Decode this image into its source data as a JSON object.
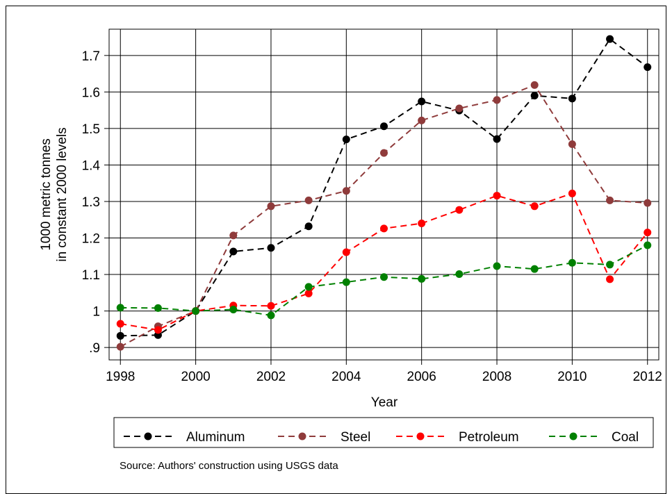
{
  "chart_data": {
    "type": "line",
    "x_label": "Year",
    "y_label": [
      "1000 metric tonnes",
      "in constant 2000 levels"
    ],
    "note": "Source: Authors' construction using USGS data",
    "x": [
      1998,
      1999,
      2000,
      2001,
      2002,
      2003,
      2004,
      2005,
      2006,
      2007,
      2008,
      2009,
      2010,
      2011,
      2012
    ],
    "xlim": [
      1997.7,
      2012.3
    ],
    "xticks": [
      1998,
      2000,
      2002,
      2004,
      2006,
      2008,
      2010,
      2012
    ],
    "ylim": [
      0.866,
      1.772
    ],
    "yticks": [
      {
        "value": 0.9,
        "label": ".9"
      },
      1,
      1.1,
      1.2,
      1.3,
      1.4,
      1.5,
      1.6,
      1.7
    ],
    "grid": true,
    "legend": "bottom",
    "series": [
      {
        "name": "Aluminum",
        "color": "#000000",
        "values": [
          0.932,
          0.934,
          1.0,
          1.163,
          1.173,
          1.232,
          1.47,
          1.506,
          1.574,
          1.549,
          1.471,
          1.59,
          1.582,
          1.745,
          1.668
        ]
      },
      {
        "name": "Steel",
        "color": "#8f3b3b",
        "values": [
          0.902,
          0.958,
          1.0,
          1.207,
          1.287,
          1.303,
          1.329,
          1.433,
          1.522,
          1.555,
          1.578,
          1.619,
          1.457,
          1.303,
          1.296
        ]
      },
      {
        "name": "Petroleum",
        "color": "#ff0000",
        "values": [
          0.965,
          0.948,
          1.0,
          1.015,
          1.014,
          1.048,
          1.161,
          1.226,
          1.24,
          1.277,
          1.316,
          1.287,
          1.322,
          1.087,
          1.215
        ]
      },
      {
        "name": "Coal",
        "color": "#008000",
        "values": [
          1.009,
          1.008,
          1.0,
          1.004,
          0.988,
          1.066,
          1.079,
          1.093,
          1.088,
          1.101,
          1.123,
          1.115,
          1.132,
          1.127,
          1.18
        ]
      }
    ]
  }
}
